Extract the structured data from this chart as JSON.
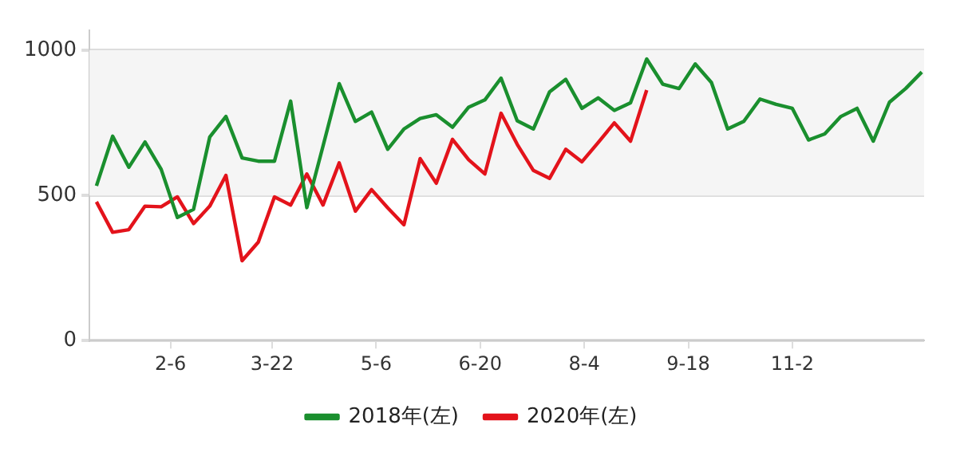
{
  "chart_data": {
    "type": "line",
    "x": [
      "--01-05",
      "--01-12",
      "--01-19",
      "--01-26",
      "--02-02",
      "--02-09",
      "--02-16",
      "--02-23",
      "--03-02",
      "--03-09",
      "--03-16",
      "--03-23",
      "--03-30",
      "--04-06",
      "--04-13",
      "--04-20",
      "--04-27",
      "--05-04",
      "--05-11",
      "--05-18",
      "--05-25",
      "--06-01",
      "--06-08",
      "--06-15",
      "--06-22",
      "--06-29",
      "--07-06",
      "--07-13",
      "--07-20",
      "--07-27",
      "--08-03",
      "--08-10",
      "--08-17",
      "--08-24",
      "--08-31",
      "--09-07",
      "--09-14",
      "--09-21",
      "--09-28",
      "--10-05",
      "--10-12",
      "--10-19",
      "--10-26",
      "--11-02",
      "--11-09",
      "--11-16",
      "--11-23",
      "--11-30",
      "--12-07",
      "--12-14",
      "--12-21",
      "--12-28"
    ],
    "series": [
      {
        "name": "2018年(左)",
        "color": "#1a8f2e",
        "values": [
          533,
          704,
          597,
          684,
          590,
          424,
          452,
          701,
          772,
          629,
          618,
          618,
          825,
          458,
          670,
          885,
          755,
          787,
          659,
          729,
          765,
          778,
          735,
          804,
          829,
          904,
          757,
          729,
          857,
          900,
          800,
          836,
          793,
          819,
          970,
          883,
          868,
          953,
          889,
          729,
          755,
          832,
          814,
          800,
          691,
          712,
          772,
          800,
          687,
          821,
          868,
          925
        ]
      },
      {
        "name": "2020年(左)",
        "color": "#e3131b",
        "x": [
          "--01-05",
          "--01-12",
          "--01-19",
          "--01-26",
          "--02-02",
          "--02-09",
          "--02-16",
          "--02-23",
          "--03-02",
          "--03-09",
          "--03-16",
          "--03-23",
          "--03-30",
          "--04-06",
          "--04-13",
          "--04-20",
          "--04-27",
          "--05-04",
          "--05-11",
          "--05-18",
          "--05-25",
          "--06-01",
          "--06-08",
          "--06-15",
          "--06-22",
          "--06-29",
          "--07-06",
          "--07-13",
          "--07-20",
          "--07-27",
          "--08-03",
          "--08-10",
          "--08-17",
          "--08-24",
          "--08-31"
        ],
        "values": [
          478,
          373,
          382,
          463,
          461,
          495,
          403,
          463,
          569,
          275,
          339,
          495,
          467,
          574,
          467,
          612,
          446,
          520,
          457,
          399,
          627,
          542,
          693,
          623,
          574,
          783,
          676,
          586,
          559,
          659,
          616,
          682,
          750,
          687,
          863
        ]
      }
    ],
    "xlim": [
      "--01-02",
      "--12-29"
    ],
    "xticks": [
      {
        "value": "--02-06",
        "label": "2-6"
      },
      {
        "value": "--03-22",
        "label": "3-22"
      },
      {
        "value": "--05-06",
        "label": "5-6"
      },
      {
        "value": "--06-20",
        "label": "6-20"
      },
      {
        "value": "--08-04",
        "label": "8-4"
      },
      {
        "value": "--09-18",
        "label": "9-18"
      },
      {
        "value": "--11-02",
        "label": "11-2"
      }
    ],
    "ylim": [
      0,
      1070
    ],
    "yticks": [
      0,
      500,
      1000
    ],
    "bands": [
      {
        "axis": "y",
        "from": 500,
        "to": 1000,
        "color": "#f5f5f5"
      }
    ],
    "grid": "y",
    "legend": "bottom",
    "line_style": "solid",
    "marker": "none"
  }
}
